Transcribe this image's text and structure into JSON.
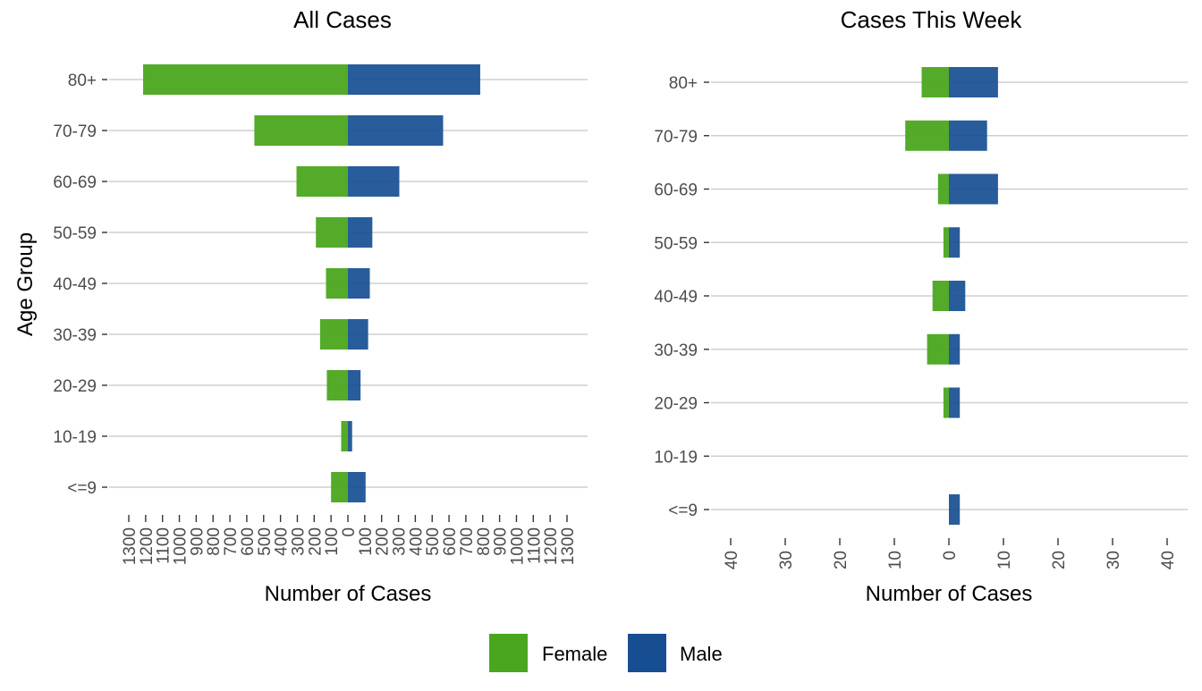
{
  "colors": {
    "female": "#4aa61e",
    "male": "#174e91",
    "grid": "#cfcfcf"
  },
  "legend": {
    "female": "Female",
    "male": "Male"
  },
  "chart_data": [
    {
      "type": "bar",
      "orientation": "horizontal-diverging",
      "title": "All Cases",
      "xlabel": "Number of Cases",
      "ylabel": "Age Group",
      "categories": [
        "80+",
        "70-79",
        "60-69",
        "50-59",
        "40-49",
        "30-39",
        "20-29",
        "10-19",
        "<=9"
      ],
      "series": [
        {
          "name": "Female",
          "values": [
            1215,
            555,
            305,
            190,
            130,
            165,
            125,
            40,
            100
          ]
        },
        {
          "name": "Male",
          "values": [
            785,
            565,
            305,
            145,
            130,
            120,
            75,
            25,
            105
          ]
        }
      ],
      "xlim": [
        -1300,
        1300
      ],
      "xticks": [
        -1300,
        -1200,
        -1100,
        -1000,
        -900,
        -800,
        -700,
        -600,
        -500,
        -400,
        -300,
        -200,
        -100,
        0,
        100,
        200,
        300,
        400,
        500,
        600,
        700,
        800,
        900,
        1000,
        1100,
        1200,
        1300
      ],
      "xtick_labels": [
        "1300",
        "1200",
        "1100",
        "1000",
        "900",
        "800",
        "700",
        "600",
        "500",
        "400",
        "300",
        "200",
        "100",
        "0",
        "100",
        "200",
        "300",
        "400",
        "500",
        "600",
        "700",
        "800",
        "900",
        "1000",
        "1100",
        "1200",
        "1300"
      ],
      "grid": "horizontal"
    },
    {
      "type": "bar",
      "orientation": "horizontal-diverging",
      "title": "Cases This Week",
      "xlabel": "Number of Cases",
      "ylabel": "",
      "categories": [
        "80+",
        "70-79",
        "60-69",
        "50-59",
        "40-49",
        "30-39",
        "20-29",
        "10-19",
        "<=9"
      ],
      "series": [
        {
          "name": "Female",
          "values": [
            5,
            8,
            2,
            1,
            3,
            4,
            1,
            0,
            0
          ]
        },
        {
          "name": "Male",
          "values": [
            9,
            7,
            9,
            2,
            3,
            2,
            2,
            0,
            2
          ]
        }
      ],
      "xlim": [
        -40,
        40
      ],
      "xticks": [
        -40,
        -30,
        -20,
        -10,
        0,
        10,
        20,
        30,
        40
      ],
      "xtick_labels": [
        "40",
        "30",
        "20",
        "10",
        "0",
        "10",
        "20",
        "30",
        "40"
      ],
      "grid": "horizontal"
    }
  ]
}
